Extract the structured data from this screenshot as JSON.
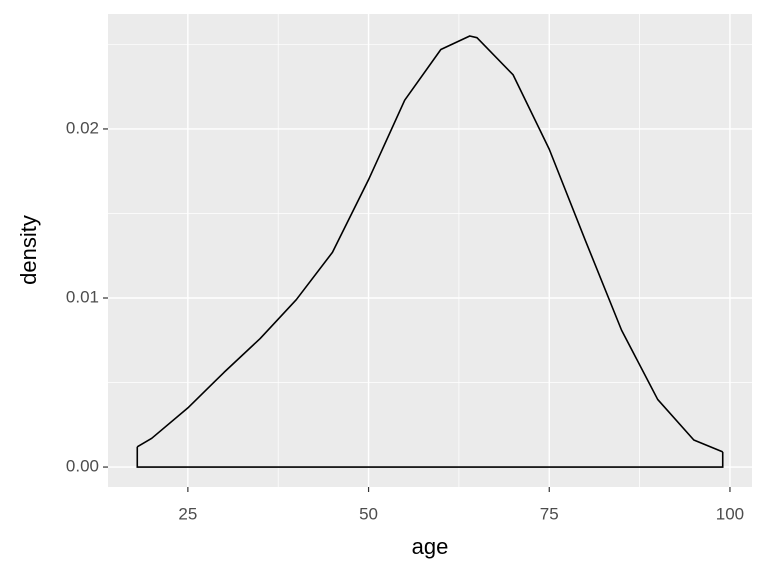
{
  "chart_data": {
    "type": "density",
    "x_label": "age",
    "y_label": "density",
    "x": [
      18,
      20,
      25,
      30,
      35,
      40,
      45,
      50,
      55,
      60,
      64,
      65,
      70,
      75,
      80,
      85,
      90,
      95,
      99
    ],
    "values": [
      0.0012,
      0.0017,
      0.0035,
      0.0056,
      0.0076,
      0.0099,
      0.0127,
      0.017,
      0.0217,
      0.0247,
      0.0255,
      0.0254,
      0.0232,
      0.0188,
      0.0134,
      0.0081,
      0.004,
      0.0016,
      0.0009
    ],
    "color": "#000000",
    "xlim": [
      13.95,
      103.05
    ],
    "xticks": [
      25,
      50,
      75,
      100
    ],
    "ylim": [
      -0.00118,
      0.0268
    ],
    "yticks": [
      {
        "value": 0,
        "label": "0.00"
      },
      {
        "value": 0.01,
        "label": "0.01"
      },
      {
        "value": 0.02,
        "label": "0.02"
      }
    ],
    "grid": true
  }
}
